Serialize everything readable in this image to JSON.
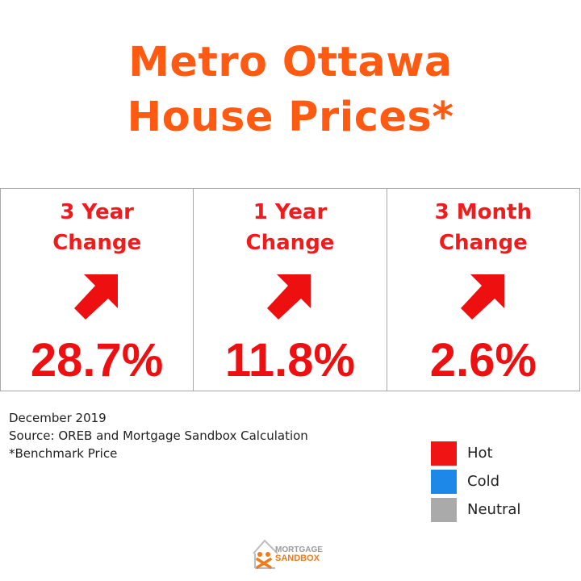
{
  "title": {
    "line1": "Metro Ottawa",
    "line2": "House Prices*"
  },
  "panels": [
    {
      "line1": "3 Year",
      "line2": "Change",
      "value": "28.7%",
      "arrow_icon": "arrow-up-right-icon"
    },
    {
      "line1": "1 Year",
      "line2": "Change",
      "value": "11.8%",
      "arrow_icon": "arrow-up-right-icon"
    },
    {
      "line1": "3 Month",
      "line2": "Change",
      "value": "2.6%",
      "arrow_icon": "arrow-up-right-icon"
    }
  ],
  "notes": {
    "date": "December 2019",
    "source": "Source: OREB and Mortgage Sandbox Calculation",
    "footnote": "*Benchmark Price"
  },
  "legend": [
    {
      "label": "Hot",
      "color": "#f01414"
    },
    {
      "label": "Cold",
      "color": "#1e88e8"
    },
    {
      "label": "Neutral",
      "color": "#aaaaaa"
    }
  ],
  "logo": {
    "line1": "MORTGAGE",
    "line2": "SANDBOX"
  },
  "colors": {
    "title": "#ff5a12",
    "panel_text": "#ee1c1c",
    "arrow": "#ee1010"
  }
}
